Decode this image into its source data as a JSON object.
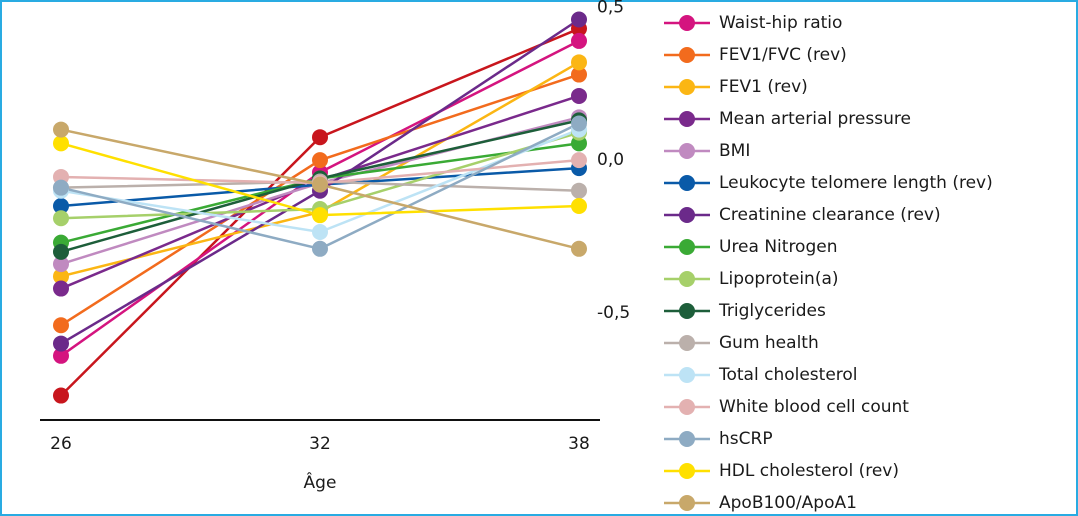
{
  "chart_data": {
    "type": "line",
    "x_label": "Âge",
    "x": [
      26,
      32,
      38
    ],
    "xlim": [
      26,
      38
    ],
    "ylim": [
      -0.85,
      0.55
    ],
    "yticks": [
      {
        "value": 0.5,
        "label": "0,5"
      },
      {
        "value": 0,
        "label": "0,0"
      },
      {
        "value": -0.5,
        "label": "-0,5"
      }
    ],
    "series": [
      {
        "color": "#c8161d",
        "values": [
          -0.77,
          0.075,
          0.43
        ]
      },
      {
        "name": "Waist-hip ratio",
        "color": "#d4147f",
        "values": [
          -0.64,
          -0.04,
          0.39
        ]
      },
      {
        "name": "FEV1/FVC (rev)",
        "color": "#f26b1d",
        "values": [
          -0.54,
          0.0,
          0.28
        ]
      },
      {
        "name": "FEV1 (rev)",
        "color": "#fbb614",
        "values": [
          -0.38,
          -0.17,
          0.32
        ]
      },
      {
        "name": "Mean arterial pressure",
        "color": "#7a2a8c",
        "values": [
          -0.42,
          -0.065,
          0.21
        ]
      },
      {
        "name": "BMI",
        "color": "#c08ac0",
        "values": [
          -0.34,
          -0.075,
          0.14
        ]
      },
      {
        "name": "Leukocyte telomere length (rev)",
        "color": "#0a5aa8",
        "values": [
          -0.15,
          -0.08,
          -0.026
        ]
      },
      {
        "name": "Creatinine clearance (rev)",
        "color": "#6b2a8a",
        "values": [
          -0.6,
          -0.1,
          0.46
        ]
      },
      {
        "name": "Urea Nitrogen",
        "color": "#3aaa35",
        "values": [
          -0.27,
          -0.06,
          0.055
        ]
      },
      {
        "name": "Lipoprotein(a)",
        "color": "#a6d06a",
        "values": [
          -0.19,
          -0.16,
          0.09
        ]
      },
      {
        "name": "Triglycerides",
        "color": "#1d5e3a",
        "values": [
          -0.3,
          -0.06,
          0.13
        ]
      },
      {
        "name": "Gum health",
        "color": "#bbb0ab",
        "values": [
          -0.09,
          -0.07,
          -0.1
        ]
      },
      {
        "name": "Total cholesterol",
        "color": "#bde3f5",
        "values": [
          -0.1,
          -0.235,
          0.1
        ]
      },
      {
        "name": "White blood cell count",
        "color": "#e3b1b1",
        "values": [
          -0.055,
          -0.075,
          0.0
        ]
      },
      {
        "name": "hsCRP",
        "color": "#8eabc3",
        "values": [
          -0.09,
          -0.29,
          0.12
        ]
      },
      {
        "name": "HDL cholesterol (rev)",
        "color": "#ffe000",
        "values": [
          0.055,
          -0.18,
          -0.15
        ]
      },
      {
        "name": "ApoB100/ApoA1",
        "color": "#c8a86a",
        "values": [
          0.1,
          -0.08,
          -0.29
        ]
      }
    ]
  }
}
